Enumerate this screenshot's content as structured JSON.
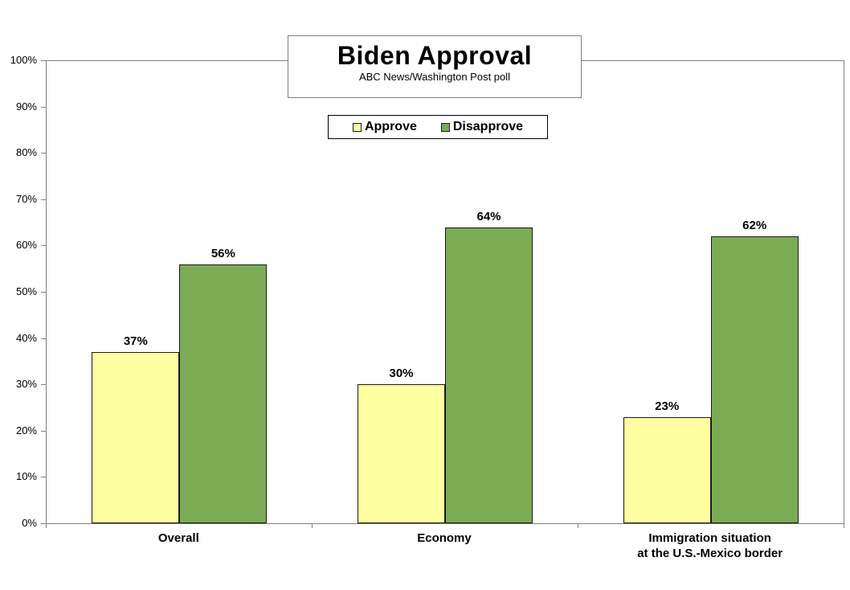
{
  "header": {
    "title": "Biden Approval",
    "subtitle": "ABC News/Washington Post poll"
  },
  "legend": {
    "position": "top-center",
    "items": [
      {
        "label": "Approve",
        "color": "#FDFFA0"
      },
      {
        "label": "Disapprove",
        "color": "#7CAB55"
      }
    ]
  },
  "chart_data": {
    "type": "bar",
    "title": "Biden Approval",
    "subtitle": "ABC News/Washington Post poll",
    "categories": [
      "Overall",
      "Economy",
      "Immigration situation\nat the U.S.-Mexico border"
    ],
    "series": [
      {
        "name": "Approve",
        "color": "#FDFFA0",
        "values": [
          37,
          30,
          23
        ]
      },
      {
        "name": "Disapprove",
        "color": "#7CAB55",
        "values": [
          56,
          64,
          62
        ]
      }
    ],
    "value_label_format": "{v}%",
    "xlabel": "",
    "ylabel": "",
    "ylim": [
      0,
      100
    ],
    "yticks": [
      0,
      10,
      20,
      30,
      40,
      50,
      60,
      70,
      80,
      90,
      100
    ],
    "ytick_format": "{v}%",
    "grid": false,
    "legend_position": "top-center"
  },
  "colors": {
    "background": "#FFFFFF",
    "axis": "#808080",
    "bar_border": "#1A1A1A",
    "text": "#000000",
    "approve": "#FDFFA0",
    "disapprove": "#7CAB55"
  }
}
